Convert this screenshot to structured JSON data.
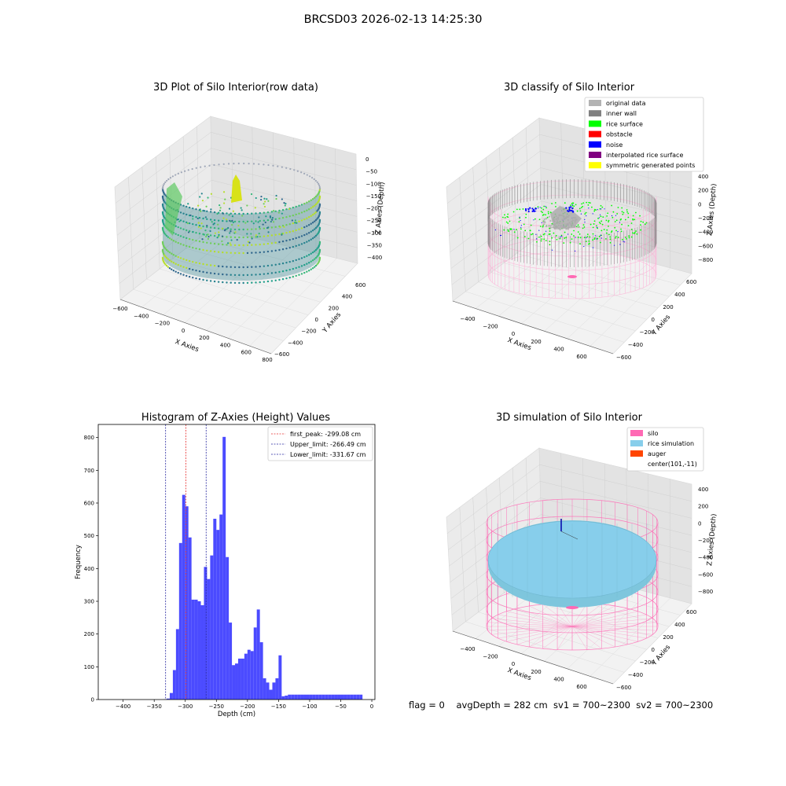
{
  "figure_title": "BRCSD03 2026-02-13 14:25:30",
  "footer": "flag = 0    avgDepth = 282 cm  sv1 = 700~2300  sv2 = 700~2300",
  "colors": {
    "histogram": "#4b4bff",
    "first_peak": "#e83030",
    "limit": "#2a2aa0",
    "silo": "#ff69b4",
    "rice_simulation": "#87ceeb",
    "auger": "#ff4500",
    "original": "#b3b3b3",
    "inner_wall": "#808080",
    "rice_surface": "#00ff00",
    "obstacle": "#ff0000",
    "noise": "#0000ff",
    "interpolated": "#800080",
    "symmetric": "#ffff00"
  },
  "chart_data": [
    {
      "type": "scatter",
      "title": "3D Plot of Silo Interior(row data)",
      "xlabel": "X Axies",
      "ylabel": "Y Axies",
      "zlabel": "Z Axies (Depth)",
      "x_ticks": [
        "−600",
        "−400",
        "−200",
        "0",
        "200",
        "400",
        "600",
        "800"
      ],
      "y_ticks": [
        "600",
        "400",
        "200",
        "0",
        "−200",
        "−400",
        "−600"
      ],
      "z_ticks": [
        "0",
        "−50",
        "−100",
        "−150",
        "−200",
        "−250",
        "−300",
        "−350",
        "−400"
      ],
      "colormap": "viridis"
    },
    {
      "type": "scatter",
      "title": "3D classify of Silo Interior",
      "xlabel": "X Axies",
      "ylabel": "Y Axies",
      "zlabel": "Z Axies (Depth)",
      "x_ticks": [
        "−400",
        "−200",
        "0",
        "200",
        "400",
        "600"
      ],
      "y_ticks": [
        "600",
        "400",
        "200",
        "0",
        "−200",
        "−400",
        "−600"
      ],
      "z_ticks": [
        "400",
        "200",
        "0",
        "−200",
        "−400",
        "−600",
        "−800"
      ],
      "legend": [
        "original data",
        "inner wall",
        "rice surface",
        "obstacle",
        "noise",
        "interpolated rice surface",
        "symmetric generated points"
      ],
      "legend_position": "top-right"
    },
    {
      "type": "bar",
      "title": "Histogram of Z-Axies (Height) Values",
      "xlabel": "Depth (cm)",
      "ylabel": "Frequency",
      "xlim": [
        -440,
        5
      ],
      "ylim": [
        0,
        840
      ],
      "x_ticks": [
        "−400",
        "−350",
        "−300",
        "−250",
        "−200",
        "−150",
        "−100",
        "−50",
        "0"
      ],
      "y_ticks": [
        "0",
        "100",
        "200",
        "300",
        "400",
        "500",
        "600",
        "700",
        "800"
      ],
      "bin_edges": [
        -345,
        -340,
        -335,
        -330,
        -325,
        -320,
        -315,
        -310,
        -305,
        -300,
        -295,
        -290,
        -285,
        -280,
        -275,
        -270,
        -265,
        -260,
        -255,
        -250,
        -245,
        -240,
        -235,
        -230,
        -225,
        -220,
        -215,
        -210,
        -205,
        -200,
        -195,
        -190,
        -185,
        -180,
        -175,
        -170,
        -165,
        -160,
        -155,
        -150,
        -145,
        -140,
        -135,
        -130,
        -125,
        -120,
        -115,
        -110,
        -105,
        -100,
        -95,
        -90,
        -85,
        -80,
        -75,
        -70,
        -65,
        -60,
        -55,
        -50,
        -45,
        -40,
        -35,
        -30,
        -25,
        -20,
        -15
      ],
      "values": [
        0,
        0,
        1,
        3,
        20,
        90,
        215,
        478,
        625,
        590,
        495,
        305,
        305,
        300,
        288,
        405,
        368,
        440,
        552,
        518,
        565,
        802,
        435,
        235,
        105,
        110,
        125,
        125,
        140,
        152,
        148,
        220,
        275,
        175,
        65,
        52,
        30,
        52,
        65,
        135,
        10,
        12,
        15,
        15,
        15,
        15,
        15,
        15,
        15,
        15,
        15,
        15,
        15,
        15,
        15,
        15,
        15,
        15,
        15,
        15,
        15,
        15,
        15,
        15,
        15,
        15
      ],
      "lines": [
        {
          "label": "first_peak: -299.08 cm",
          "x": -299.08,
          "style": "first_peak"
        },
        {
          "label": "Upper_limit: -266.49 cm",
          "x": -266.49,
          "style": "limit"
        },
        {
          "label": "Lower_limit: -331.67 cm",
          "x": -331.67,
          "style": "limit"
        }
      ],
      "legend_position": "top-right"
    },
    {
      "type": "scatter",
      "title": "3D simulation of Silo Interior",
      "xlabel": "X Axies",
      "ylabel": "Y Axies",
      "zlabel": "Z Axies (Depth)",
      "x_ticks": [
        "−400",
        "−200",
        "0",
        "200",
        "400",
        "600"
      ],
      "y_ticks": [
        "600",
        "400",
        "200",
        "0",
        "−200",
        "−400",
        "−600"
      ],
      "z_ticks": [
        "400",
        "200",
        "0",
        "−200",
        "−400",
        "−600",
        "−800"
      ],
      "legend": [
        "silo",
        "rice simulation",
        "auger",
        "center(101,-11)"
      ],
      "legend_position": "top-right"
    }
  ]
}
